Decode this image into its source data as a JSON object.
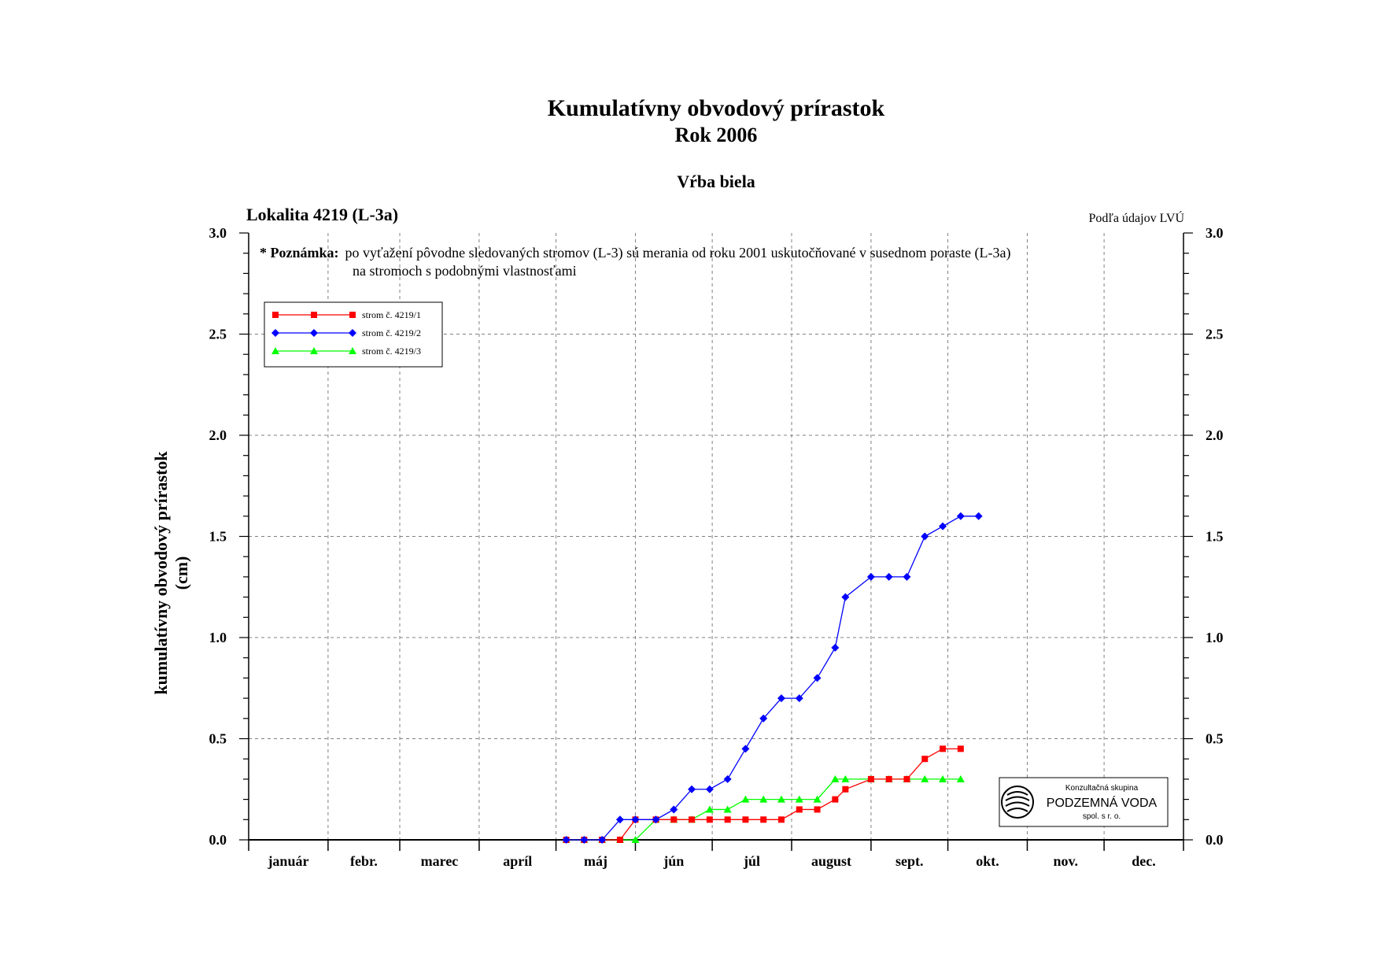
{
  "header": {
    "title": "Kumulatívny obvodový prírastok",
    "subtitle": "Rok 2006",
    "species": "Vŕba biela",
    "locality": "Lokalita 4219 (L-3a)",
    "source": "Podľa údajov LVÚ"
  },
  "note": {
    "label": "* Poznámka:",
    "line1": "po vyťažení pôvodne sledovaných stromov (L-3) sú merania od roku 2001 uskutočňované v susednom poraste (L-3a)",
    "line2": "na stromoch s podobnými vlastnosťami"
  },
  "logo": {
    "line1": "Konzultačná skupina",
    "line2": "PODZEMNÁ VODA",
    "line3": "spol. s r. o."
  },
  "chart_data": {
    "type": "line",
    "ylabel_line1": "kumulatívny obvodový prírastok",
    "ylabel_line2": "(cm)",
    "months": [
      "január",
      "febr.",
      "marec",
      "apríl",
      "máj",
      "jún",
      "júl",
      "august",
      "sept.",
      "okt.",
      "nov.",
      "dec."
    ],
    "x_unit": "day of year 2006",
    "xlim": [
      1,
      365
    ],
    "ylim": [
      0,
      3.0
    ],
    "y_ticks": [
      "0.0",
      "0.5",
      "1.0",
      "1.5",
      "2.0",
      "2.5",
      "3.0"
    ],
    "grid": true,
    "legend_position": "top-left",
    "series": [
      {
        "name": "strom č. 4219/1",
        "color": "#ff0000",
        "marker": "square",
        "points": [
          [
            125,
            0
          ],
          [
            132,
            0
          ],
          [
            139,
            0
          ],
          [
            146,
            0
          ],
          [
            152,
            0.1
          ],
          [
            160,
            0.1
          ],
          [
            167,
            0.1
          ],
          [
            174,
            0.1
          ],
          [
            181,
            0.1
          ],
          [
            188,
            0.1
          ],
          [
            195,
            0.1
          ],
          [
            202,
            0.1
          ],
          [
            209,
            0.1
          ],
          [
            216,
            0.15
          ],
          [
            223,
            0.15
          ],
          [
            230,
            0.2
          ],
          [
            234,
            0.25
          ],
          [
            244,
            0.3
          ],
          [
            251,
            0.3
          ],
          [
            258,
            0.3
          ],
          [
            265,
            0.4
          ],
          [
            272,
            0.45
          ],
          [
            279,
            0.45
          ]
        ]
      },
      {
        "name": "strom č. 4219/2",
        "color": "#0000ff",
        "marker": "diamond",
        "points": [
          [
            125,
            0
          ],
          [
            132,
            0
          ],
          [
            139,
            0
          ],
          [
            146,
            0.1
          ],
          [
            152,
            0.1
          ],
          [
            160,
            0.1
          ],
          [
            167,
            0.15
          ],
          [
            174,
            0.25
          ],
          [
            181,
            0.25
          ],
          [
            188,
            0.3
          ],
          [
            195,
            0.45
          ],
          [
            202,
            0.6
          ],
          [
            209,
            0.7
          ],
          [
            216,
            0.7
          ],
          [
            223,
            0.8
          ],
          [
            230,
            0.95
          ],
          [
            234,
            1.2
          ],
          [
            244,
            1.3
          ],
          [
            251,
            1.3
          ],
          [
            258,
            1.3
          ],
          [
            265,
            1.5
          ],
          [
            272,
            1.55
          ],
          [
            279,
            1.6
          ],
          [
            286,
            1.6
          ]
        ]
      },
      {
        "name": "strom č. 4219/3",
        "color": "#00ff00",
        "marker": "triangle",
        "points": [
          [
            125,
            0
          ],
          [
            132,
            0
          ],
          [
            139,
            0
          ],
          [
            146,
            0
          ],
          [
            152,
            0
          ],
          [
            160,
            0.1
          ],
          [
            167,
            0.1
          ],
          [
            174,
            0.1
          ],
          [
            181,
            0.15
          ],
          [
            188,
            0.15
          ],
          [
            195,
            0.2
          ],
          [
            202,
            0.2
          ],
          [
            209,
            0.2
          ],
          [
            216,
            0.2
          ],
          [
            223,
            0.2
          ],
          [
            230,
            0.3
          ],
          [
            234,
            0.3
          ],
          [
            244,
            0.3
          ],
          [
            251,
            0.3
          ],
          [
            258,
            0.3
          ],
          [
            265,
            0.3
          ],
          [
            272,
            0.3
          ],
          [
            279,
            0.3
          ]
        ]
      }
    ]
  }
}
